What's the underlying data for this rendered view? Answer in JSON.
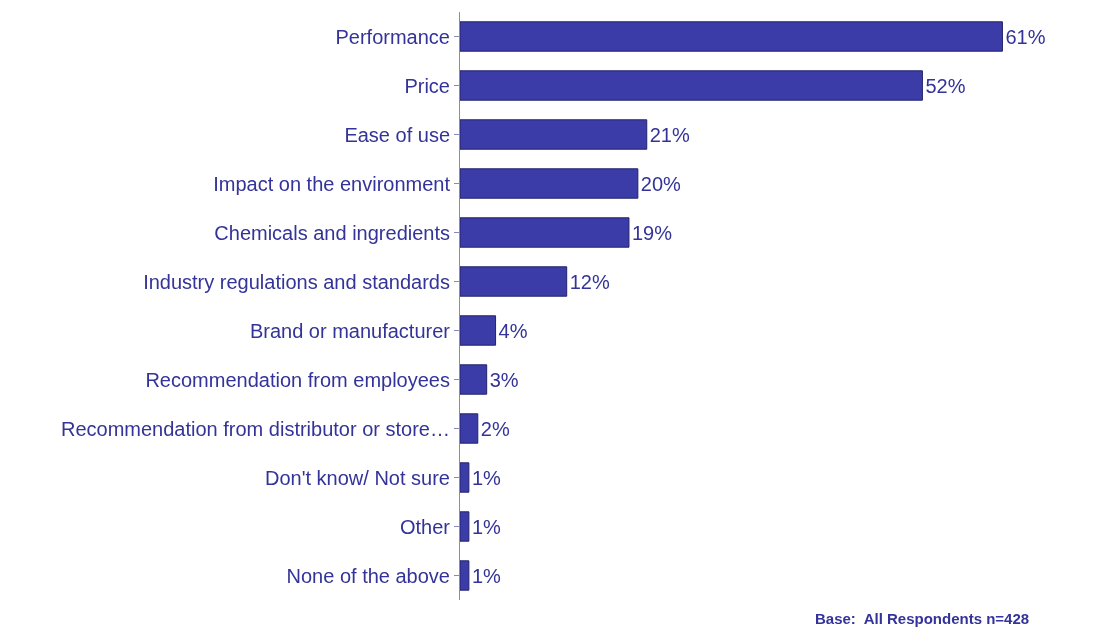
{
  "chart_data": {
    "type": "bar",
    "orientation": "horizontal",
    "categories": [
      "Performance",
      "Price",
      "Ease of use",
      "Impact on the environment",
      "Chemicals and ingredients",
      "Industry regulations and standards",
      "Brand or manufacturer",
      "Recommendation from employees",
      "Recommendation from distributor or store…",
      "Don't know/ Not sure",
      "Other",
      "None of the above"
    ],
    "values": [
      61,
      52,
      21,
      20,
      19,
      12,
      4,
      3,
      2,
      1,
      1,
      1
    ],
    "value_labels": [
      "61%",
      "52%",
      "21%",
      "20%",
      "19%",
      "12%",
      "4%",
      "3%",
      "2%",
      "1%",
      "1%",
      "1%"
    ],
    "color": "#3c3ca8",
    "tick_labels": "y",
    "legend": false,
    "annotations": [
      "Base:  All Respondents n=428"
    ]
  }
}
